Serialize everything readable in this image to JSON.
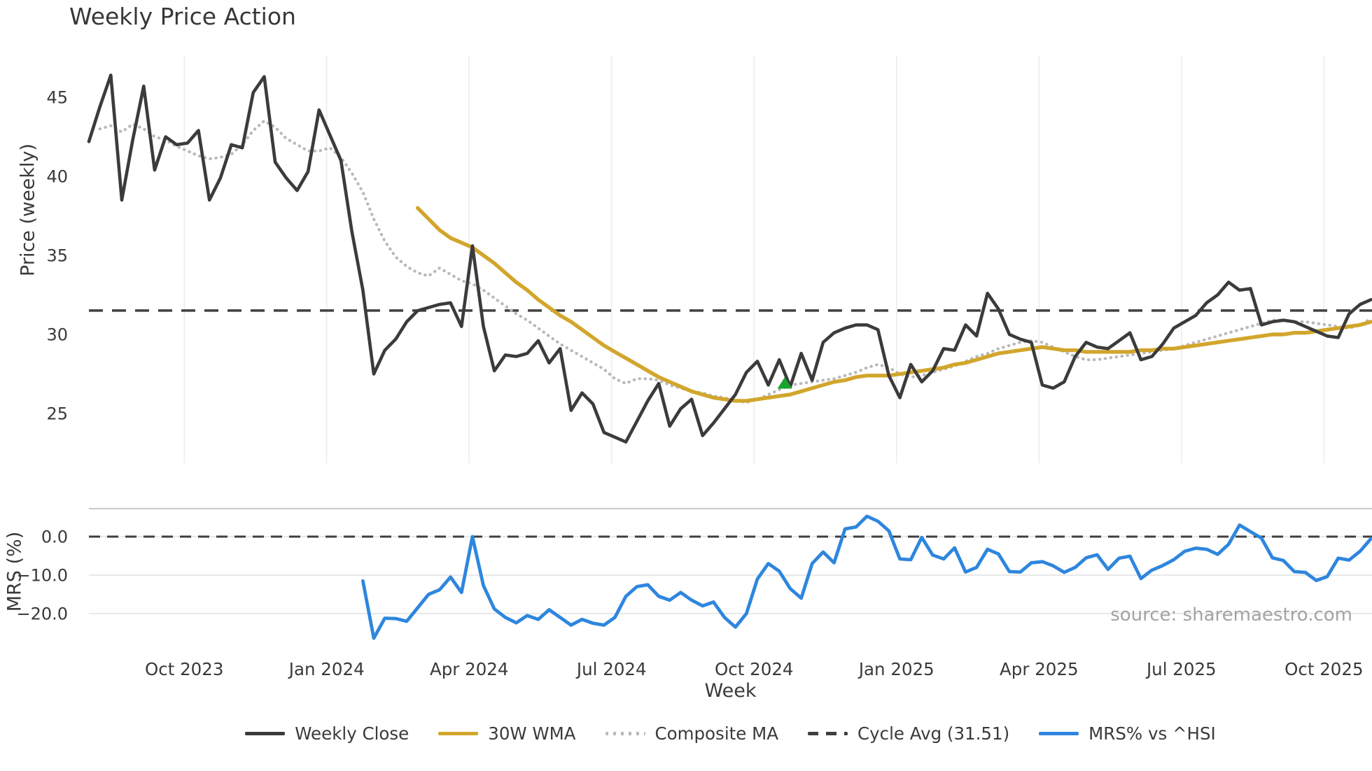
{
  "title": "Weekly Price Action",
  "source_text": "source: sharemaestro.com",
  "axes": {
    "price_label": "Price (weekly)",
    "mrs_label": "MRS (%)",
    "week_label": "Week"
  },
  "colors": {
    "weekly_close": "#3b3b3b",
    "wma_30w": "#d2a62c",
    "composite_ma": "#b9b9b9",
    "cycle_avg": "#3f3f3f",
    "mrs": "#2e86de",
    "signal_marker": "#18a42c",
    "gridline": "#ececec",
    "mrs_gridline": "#e4e4e4",
    "mrs_spine": "#cbcbcb",
    "tick_text": "#3a3a3a",
    "source_text": "#a3a3a3"
  },
  "legend": [
    {
      "label": "Weekly Close",
      "style": "solid",
      "color": "#3b3b3b"
    },
    {
      "label": "30W WMA",
      "style": "solid",
      "color": "#d2a62c"
    },
    {
      "label": "Composite MA",
      "style": "dotted",
      "color": "#b9b9b9"
    },
    {
      "label": "Cycle Avg (31.51)",
      "style": "dashed",
      "color": "#3f3f3f"
    },
    {
      "label": "MRS% vs ^HSI",
      "style": "solid",
      "color": "#2e86de"
    }
  ],
  "chart_data": [
    {
      "panel": "price",
      "type": "line",
      "title": "Weekly Price Action",
      "xlabel": "Week",
      "ylabel": "Price (weekly)",
      "ylim": [
        21.9,
        47.6
      ],
      "grid": "vertical-only",
      "y_ticks": [
        45,
        40,
        35,
        30,
        25
      ],
      "x_ticks": [
        {
          "label": "Oct 2023",
          "week": 8.7
        },
        {
          "label": "Jan 2024",
          "week": 21.7
        },
        {
          "label": "Apr 2024",
          "week": 34.7
        },
        {
          "label": "Jul 2024",
          "week": 47.7
        },
        {
          "label": "Oct 2024",
          "week": 60.7
        },
        {
          "label": "Jan 2025",
          "week": 73.7
        },
        {
          "label": "Apr 2025",
          "week": 86.7
        },
        {
          "label": "Jul 2025",
          "week": 99.7
        },
        {
          "label": "Oct 2025",
          "week": 112.7
        }
      ],
      "series": [
        {
          "name": "Weekly Close",
          "style": "solid",
          "color": "#3b3b3b",
          "start_week": 0,
          "values": [
            42.2,
            44.4,
            46.4,
            38.5,
            42.3,
            45.7,
            40.4,
            42.5,
            42.0,
            42.1,
            42.9,
            38.5,
            39.9,
            42.0,
            41.8,
            45.3,
            46.3,
            40.9,
            39.9,
            39.1,
            40.3,
            44.2,
            42.6,
            41.0,
            36.5,
            32.8,
            27.5,
            29.0,
            29.7,
            30.8,
            31.5,
            31.7,
            31.9,
            32.0,
            30.5,
            35.6,
            30.5,
            27.7,
            28.7,
            28.6,
            28.8,
            29.6,
            28.2,
            29.1,
            25.2,
            26.3,
            25.6,
            23.8,
            23.5,
            23.2,
            24.5,
            25.8,
            26.9,
            24.2,
            25.3,
            25.9,
            23.6,
            24.4,
            25.3,
            26.2,
            27.6,
            28.3,
            26.8,
            28.4,
            26.7,
            28.8,
            27.1,
            29.5,
            30.1,
            30.4,
            30.6,
            30.6,
            30.3,
            27.4,
            26.0,
            28.1,
            27.0,
            27.7,
            29.1,
            29.0,
            30.6,
            29.9,
            32.6,
            31.6,
            30.0,
            29.7,
            29.5,
            26.8,
            26.6,
            27.0,
            28.6,
            29.5,
            29.2,
            29.1,
            29.6,
            30.1,
            28.4,
            28.6,
            29.4,
            30.4,
            30.8,
            31.2,
            32.0,
            32.5,
            33.3,
            32.8,
            32.9,
            30.6,
            30.8,
            30.9,
            30.8,
            30.5,
            30.2,
            29.9,
            29.8,
            31.3,
            31.9,
            32.2
          ]
        },
        {
          "name": "30W WMA",
          "style": "solid",
          "color": "#d2a62c",
          "start_week": 30,
          "values": [
            38.0,
            37.3,
            36.6,
            36.1,
            35.8,
            35.5,
            35.0,
            34.5,
            33.9,
            33.3,
            32.8,
            32.2,
            31.7,
            31.2,
            30.8,
            30.3,
            29.8,
            29.3,
            28.9,
            28.5,
            28.1,
            27.7,
            27.3,
            27.0,
            26.7,
            26.4,
            26.2,
            26.0,
            25.9,
            25.8,
            25.8,
            25.9,
            26.0,
            26.1,
            26.2,
            26.4,
            26.6,
            26.8,
            27.0,
            27.1,
            27.3,
            27.4,
            27.4,
            27.4,
            27.5,
            27.6,
            27.7,
            27.8,
            27.9,
            28.1,
            28.2,
            28.4,
            28.6,
            28.8,
            28.9,
            29.0,
            29.1,
            29.2,
            29.1,
            29.0,
            29.0,
            28.9,
            28.9,
            28.9,
            28.9,
            28.9,
            29.0,
            29.0,
            29.1,
            29.1,
            29.2,
            29.3,
            29.4,
            29.5,
            29.6,
            29.7,
            29.8,
            29.9,
            30.0,
            30.0,
            30.1,
            30.1,
            30.2,
            30.3,
            30.4,
            30.5,
            30.6,
            30.8
          ]
        },
        {
          "name": "Composite MA",
          "style": "dotted",
          "color": "#b9b9b9",
          "start_week": 1,
          "values": [
            43.0,
            43.2,
            42.8,
            43.3,
            43.0,
            42.5,
            42.3,
            41.9,
            41.6,
            41.3,
            41.1,
            41.2,
            41.4,
            42.0,
            42.9,
            43.5,
            43.1,
            42.4,
            42.0,
            41.6,
            41.6,
            41.8,
            41.2,
            40.2,
            39.0,
            37.3,
            35.9,
            34.9,
            34.3,
            33.9,
            33.7,
            34.2,
            33.8,
            33.4,
            33.2,
            32.8,
            32.3,
            31.8,
            31.3,
            30.9,
            30.4,
            29.9,
            29.4,
            29.0,
            28.6,
            28.2,
            27.8,
            27.2,
            26.9,
            27.2,
            27.2,
            27.1,
            26.8,
            26.6,
            26.4,
            26.3,
            26.1,
            26.0,
            25.8,
            25.7,
            25.9,
            26.2,
            26.5,
            26.8,
            26.9,
            27.0,
            27.1,
            27.2,
            27.4,
            27.6,
            27.9,
            28.1,
            27.9,
            27.5,
            27.3,
            27.4,
            27.6,
            27.8,
            28.0,
            28.3,
            28.6,
            28.8,
            29.1,
            29.3,
            29.5,
            29.6,
            29.5,
            29.2,
            28.9,
            28.6,
            28.4,
            28.4,
            28.5,
            28.6,
            28.7,
            28.8,
            28.9,
            29.0,
            29.1,
            29.3,
            29.5,
            29.7,
            29.9,
            30.1,
            30.3,
            30.5,
            30.7,
            30.9,
            30.9,
            30.8,
            30.8,
            30.7,
            30.6,
            30.5,
            30.4,
            30.6,
            31.0
          ]
        },
        {
          "name": "Cycle Avg",
          "style": "dashed",
          "color": "#3f3f3f",
          "type": "hline",
          "value": 31.51
        }
      ],
      "markers": [
        {
          "name": "signal",
          "shape": "triangle-up",
          "color": "#18a42c",
          "week": 63.5,
          "value": 26.9
        }
      ]
    },
    {
      "panel": "mrs",
      "type": "line",
      "ylabel": "MRS (%)",
      "ylim": [
        -29.5,
        7.3
      ],
      "y_ticks": [
        {
          "label": "0.0",
          "value": 0
        },
        {
          "label": "−10.0",
          "value": -10
        },
        {
          "label": "−20.0",
          "value": -20
        }
      ],
      "series": [
        {
          "name": "MRS% vs ^HSI",
          "style": "solid",
          "color": "#2e86de",
          "start_week": 25,
          "values": [
            -11.5,
            -26.4,
            -21.2,
            -21.3,
            -22.0,
            -18.5,
            -15.0,
            -13.8,
            -10.5,
            -14.5,
            0.0,
            -12.7,
            -18.8,
            -21.0,
            -22.4,
            -20.5,
            -21.5,
            -19.0,
            -21.0,
            -23.0,
            -21.5,
            -22.5,
            -23.0,
            -21.0,
            -15.5,
            -13.0,
            -12.5,
            -15.5,
            -16.5,
            -14.5,
            -16.5,
            -18.0,
            -17.0,
            -21.0,
            -23.5,
            -20.0,
            -11.0,
            -7.0,
            -9.0,
            -13.5,
            -16.0,
            -7.0,
            -4.0,
            -6.8,
            2.0,
            2.5,
            5.3,
            4.0,
            1.5,
            -5.8,
            -6.0,
            -0.2,
            -4.8,
            -5.8,
            -2.9,
            -9.2,
            -8.0,
            -3.3,
            -4.5,
            -9.1,
            -9.2,
            -6.8,
            -6.5,
            -7.6,
            -9.3,
            -8.0,
            -5.5,
            -4.7,
            -8.5,
            -5.6,
            -5.1,
            -10.9,
            -8.7,
            -7.5,
            -6.0,
            -3.8,
            -3.0,
            -3.3,
            -4.6,
            -2.0,
            3.0,
            1.3,
            -0.4,
            -5.5,
            -6.2,
            -9.1,
            -9.3,
            -11.4,
            -10.4,
            -5.6,
            -6.1,
            -3.8,
            -0.5
          ]
        },
        {
          "name": "Zero Line",
          "style": "dashed",
          "color": "#3f3f3f",
          "type": "hline",
          "value": 0
        }
      ]
    }
  ]
}
